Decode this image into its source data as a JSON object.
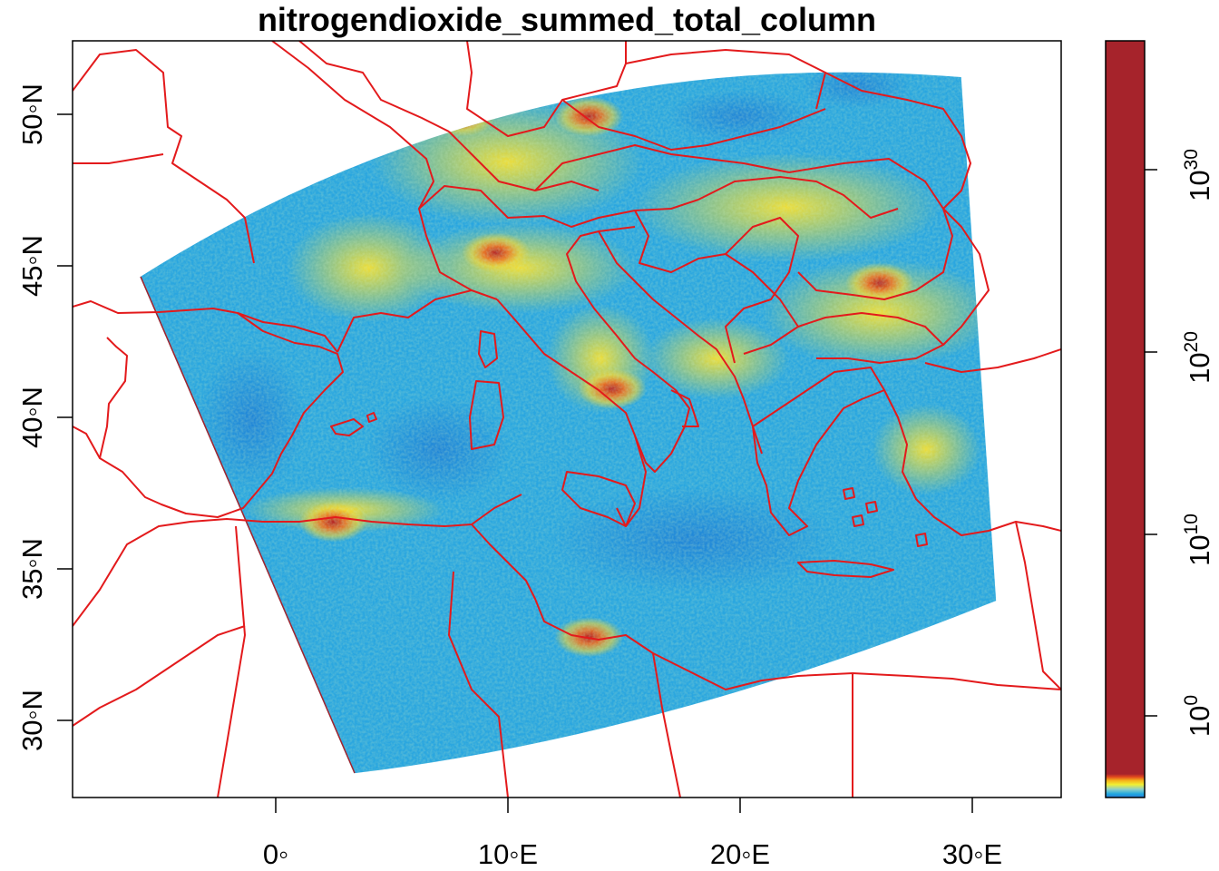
{
  "chart_data": {
    "type": "heatmap",
    "title": "nitrogendioxide_summed_total_column",
    "x_axis": {
      "range": [
        -8.7,
        33.8
      ],
      "ticks": [
        0,
        10,
        20,
        30
      ],
      "tick_labels": [
        "0◦",
        "10◦E",
        "20◦E",
        "30◦E"
      ]
    },
    "y_axis": {
      "range": [
        27.5,
        52.5
      ],
      "ticks": [
        30,
        35,
        40,
        45,
        50
      ],
      "tick_labels": [
        "30◦N",
        "35◦N",
        "40◦N",
        "45◦N",
        "50◦N"
      ]
    },
    "colorbar": {
      "scale": "log",
      "ticks": [
        0,
        10,
        20,
        30
      ],
      "tick_labels": [
        {
          "base": "10",
          "exp": "0"
        },
        {
          "base": "10",
          "exp": "10"
        },
        {
          "base": "10",
          "exp": "20"
        },
        {
          "base": "10",
          "exp": "30"
        }
      ],
      "dominant_color": "#a6232b",
      "ramp_colors": [
        "#2b7bd8",
        "#1fa7e0",
        "#8fd0c6",
        "#f2ef33",
        "#f6b21a",
        "#e0461e",
        "#a6232b"
      ]
    },
    "swath_corners": {
      "nw": [
        -5.8,
        44.7
      ],
      "ne": [
        29.5,
        51.3
      ],
      "se": [
        31.0,
        34.0
      ],
      "sw": [
        3.4,
        28.3
      ]
    },
    "border_color": "#e31a1c",
    "hotspots": [
      {
        "lon": 9.5,
        "lat": 45.5
      },
      {
        "lon": 8.0,
        "lat": 50.0
      },
      {
        "lon": 13.5,
        "lat": 50.0
      },
      {
        "lon": 2.5,
        "lat": 36.6
      },
      {
        "lon": 13.5,
        "lat": 32.8
      },
      {
        "lon": 26.0,
        "lat": 44.5
      },
      {
        "lon": 14.5,
        "lat": 41.0
      }
    ]
  }
}
